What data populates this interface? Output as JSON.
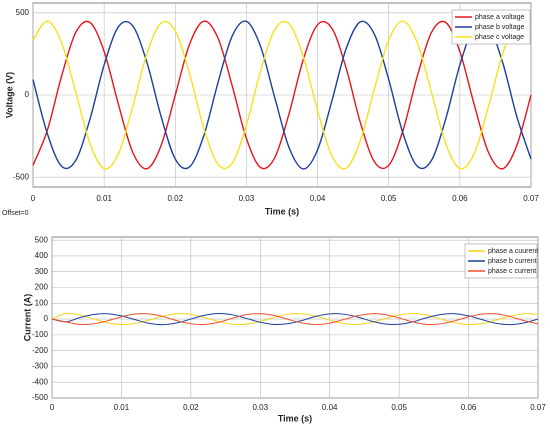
{
  "chart_data": [
    {
      "type": "line",
      "ylabel": "Voltage (V)",
      "xlabel": "Time (s)",
      "grid": true,
      "legend": "top-right",
      "xlim": [
        0,
        0.07
      ],
      "ylim": [
        -560,
        560
      ],
      "xticks": [
        0,
        0.01,
        0.02,
        0.03,
        0.04,
        0.05,
        0.06,
        0.07
      ],
      "yticks": [
        -500,
        0,
        500
      ],
      "x": [
        0,
        0.002,
        0.004,
        0.006,
        0.008,
        0.01,
        0.012,
        0.014,
        0.016,
        0.018,
        0.02,
        0.022,
        0.024,
        0.026,
        0.028,
        0.03,
        0.032,
        0.034,
        0.036,
        0.038,
        0.04,
        0.042,
        0.044,
        0.046,
        0.048,
        0.05,
        0.052,
        0.054,
        0.056,
        0.058,
        0.06,
        0.062,
        0.064,
        0.066,
        0.068,
        0.07
      ],
      "series": [
        {
          "name": "phase a voltage",
          "color": "#e8141c",
          "values": [
            -428,
            -217,
            112,
            380,
            442,
            265,
            -56,
            -347,
            -449,
            -308,
            0,
            308,
            449,
            347,
            56,
            -265,
            -442,
            -380,
            -112,
            217,
            428,
            407,
            166,
            -166,
            -407,
            -428,
            -217,
            112,
            380,
            442,
            265,
            -56,
            -347,
            -449,
            -308,
            0
          ]
        },
        {
          "name": "phase b voltage",
          "color": "#1c3f9c",
          "values": [
            94,
            -233,
            -433,
            -399,
            -148,
            183,
            415,
            422,
            200,
            -130,
            -390,
            -438,
            -249,
            75,
            359,
            448,
            294,
            -19,
            -321,
            -450,
            -334,
            -38,
            280,
            445,
            369,
            94,
            -233,
            -433,
            -399,
            -148,
            183,
            415,
            422,
            200,
            -130,
            -390
          ]
        },
        {
          "name": "phase c voltage",
          "color": "#f5e21a",
          "values": [
            334,
            450,
            321,
            19,
            -294,
            -448,
            -359,
            -75,
            249,
            438,
            390,
            130,
            -200,
            -422,
            -415,
            -183,
            148,
            399,
            433,
            233,
            -94,
            -369,
            -446,
            -279,
            38,
            334,
            450,
            321,
            19,
            -294,
            -448,
            -359,
            -75,
            249,
            438,
            390
          ]
        }
      ],
      "annotation": "Offset=0"
    },
    {
      "type": "line",
      "ylabel": "Current (A)",
      "xlabel": "Time (s)",
      "grid": true,
      "legend": "top-right",
      "xlim": [
        0,
        0.07
      ],
      "ylim": [
        -500,
        520
      ],
      "xticks": [
        0,
        0.01,
        0.02,
        0.03,
        0.04,
        0.05,
        0.06,
        0.07
      ],
      "yticks": [
        -500,
        -400,
        -300,
        -200,
        -100,
        0,
        100,
        200,
        300,
        400,
        500
      ],
      "x": [
        0,
        0.002,
        0.004,
        0.006,
        0.008,
        0.01,
        0.012,
        0.014,
        0.016,
        0.018,
        0.02,
        0.022,
        0.024,
        0.026,
        0.028,
        0.03,
        0.032,
        0.034,
        0.036,
        0.038,
        0.04,
        0.042,
        0.044,
        0.046,
        0.048,
        0.05,
        0.052,
        0.054,
        0.056,
        0.058,
        0.06,
        0.062,
        0.064,
        0.066,
        0.068,
        0.07
      ],
      "series": [
        {
          "name": "phase a cuurent",
          "color": "#f5d21a",
          "values": [
            0,
            35,
            25,
            1,
            -23,
            -34,
            -28,
            -6,
            19,
            34,
            30,
            10,
            -15,
            -32,
            -32,
            -14,
            11,
            31,
            33,
            18,
            -7,
            -28,
            -34,
            -21,
            3,
            26,
            35,
            25,
            1,
            -23,
            -34,
            -28,
            -6,
            19,
            34,
            30
          ]
        },
        {
          "name": "phase b current",
          "color": "#1c3f9c",
          "values": [
            0,
            -17,
            9,
            29,
            34,
            20,
            -4,
            -27,
            -35,
            -24,
            0,
            24,
            35,
            27,
            4,
            -20,
            -34,
            -29,
            -9,
            17,
            33,
            31,
            13,
            -13,
            -31,
            -33,
            -17,
            9,
            29,
            34,
            20,
            -4,
            -27,
            -35,
            -24,
            0
          ]
        },
        {
          "name": "phase c current",
          "color": "#f0502a",
          "values": [
            0,
            -18,
            -34,
            -30,
            -11,
            14,
            32,
            33,
            16,
            -10,
            -30,
            -34,
            -20,
            5,
            28,
            34,
            23,
            -2,
            -24,
            -35,
            -26,
            -3,
            21,
            34,
            28,
            7,
            -18,
            -34,
            -30,
            -11,
            14,
            32,
            33,
            16,
            -10,
            -30
          ]
        }
      ]
    }
  ]
}
